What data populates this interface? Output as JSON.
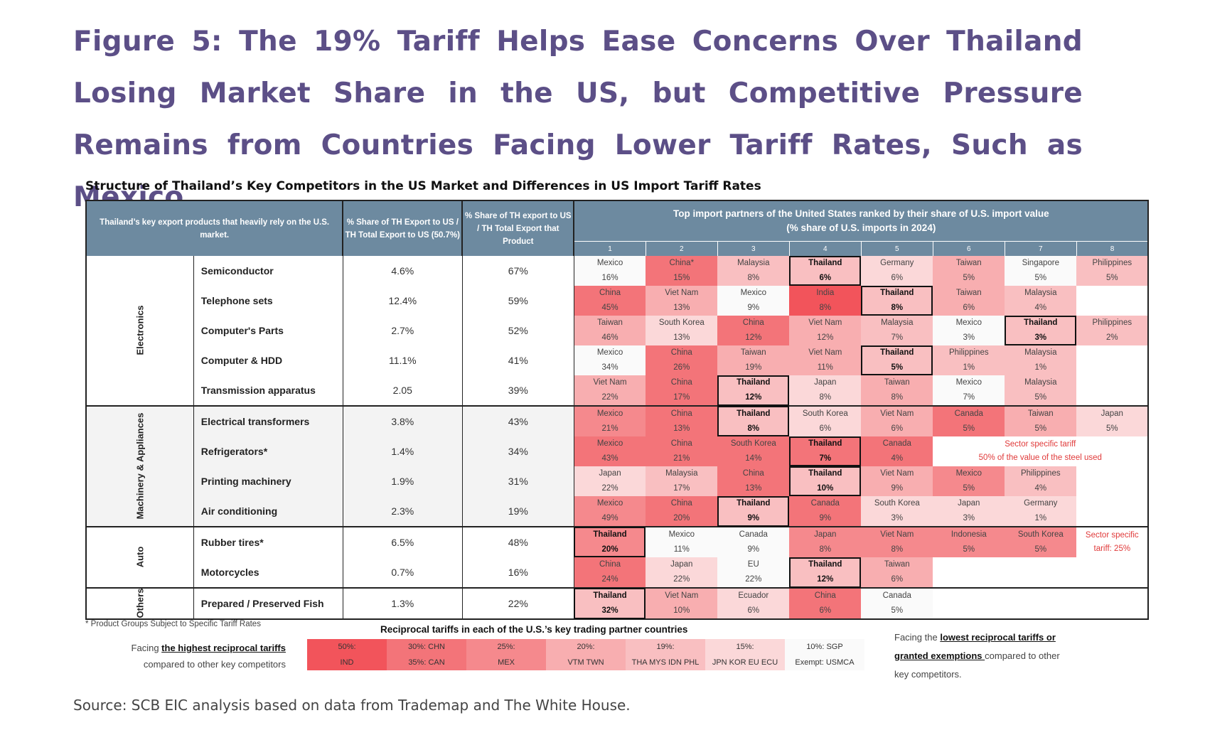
{
  "figure": {
    "title": "Figure 5: The 19% Tariff Helps Ease Concerns Over Thailand Losing Market Share in the US, but Competitive Pressure Remains from Countries Facing Lower Tariff Rates, Such as Mexico.",
    "subtitle": "Structure of Thailand’s Key Competitors in the US Market and Differences in US Import Tariff Rates",
    "source": "Source: SCB EIC analysis based on data from Trademap and The White House.",
    "footnote": "* Product Groups Subject to Specific Tariff Rates"
  },
  "headers": {
    "products": "Thailand’s key export products that heavily rely on the U.S. market.",
    "share_us": "% Share of TH Export to US / TH Total Export to US (50.7%)",
    "share_product": "% Share of TH export to US / TH Total Export that Product",
    "partners": "Top import partners of the United States ranked by their share of U.S. import value",
    "partners_sub": "(% share of U.S. imports in 2024)",
    "ranks": [
      "1",
      "2",
      "3",
      "4",
      "5",
      "6",
      "7",
      "8"
    ]
  },
  "colors": {
    "header_bg": "#6d8aa0",
    "title_purple": "#5c4f87",
    "tariff_50": "#f2545b",
    "tariff_30": "#f37479",
    "tariff_25": "#f5898d",
    "tariff_20": "#f8aeb0",
    "tariff_19": "#f9bfc1",
    "tariff_15": "#fbd8d9",
    "tariff_10": "#fafafa",
    "sector_red": "#e03a3a"
  },
  "chart_data": {
    "type": "table",
    "title": "Structure of Thailand’s Key Competitors in the US Market and Differences in US Import Tariff Rates",
    "categories": [
      {
        "name": "Electronics",
        "rows": [
          0,
          1,
          2,
          3,
          4
        ]
      },
      {
        "name": "Machinery & Appliances",
        "rows": [
          5,
          6,
          7,
          8
        ]
      },
      {
        "name": "Auto",
        "rows": [
          9,
          10
        ]
      },
      {
        "name": "Others",
        "rows": [
          11
        ]
      }
    ],
    "rows": [
      {
        "product": "Semiconductor",
        "share_us": "4.6%",
        "share_product": "67%",
        "partners": [
          [
            "Mexico",
            "16%",
            10
          ],
          [
            "China*",
            "15%",
            30
          ],
          [
            "Malaysia",
            "8%",
            19
          ],
          [
            "Thailand",
            "6%",
            19
          ],
          [
            "Germany",
            "6%",
            15
          ],
          [
            "Taiwan",
            "5%",
            20
          ],
          [
            "Singapore",
            "5%",
            10
          ],
          [
            "Philippines",
            "5%",
            19
          ]
        ]
      },
      {
        "product": "Telephone sets",
        "share_us": "12.4%",
        "share_product": "59%",
        "partners": [
          [
            "China",
            "45%",
            30
          ],
          [
            "Viet Nam",
            "13%",
            20
          ],
          [
            "Mexico",
            "9%",
            10
          ],
          [
            "India",
            "8%",
            50
          ],
          [
            "Thailand",
            "8%",
            19
          ],
          [
            "Taiwan",
            "6%",
            20
          ],
          [
            "Malaysia",
            "4%",
            19
          ]
        ]
      },
      {
        "product": "Computer's Parts",
        "share_us": "2.7%",
        "share_product": "52%",
        "partners": [
          [
            "Taiwan",
            "46%",
            20
          ],
          [
            "South Korea",
            "13%",
            15
          ],
          [
            "China",
            "12%",
            30
          ],
          [
            "Viet Nam",
            "12%",
            20
          ],
          [
            "Malaysia",
            "7%",
            19
          ],
          [
            "Mexico",
            "3%",
            10
          ],
          [
            "Thailand",
            "3%",
            19
          ],
          [
            "Philippines",
            "2%",
            19
          ]
        ]
      },
      {
        "product": "Computer & HDD",
        "share_us": "11.1%",
        "share_product": "41%",
        "partners": [
          [
            "Mexico",
            "34%",
            10
          ],
          [
            "China",
            "26%",
            30
          ],
          [
            "Taiwan",
            "19%",
            20
          ],
          [
            "Viet Nam",
            "11%",
            20
          ],
          [
            "Thailand",
            "5%",
            19
          ],
          [
            "Philippines",
            "1%",
            19
          ],
          [
            "Malaysia",
            "1%",
            19
          ]
        ]
      },
      {
        "product": "Transmission apparatus",
        "share_us": "2.05",
        "share_product": "39%",
        "partners": [
          [
            "Viet Nam",
            "22%",
            20
          ],
          [
            "China",
            "17%",
            30
          ],
          [
            "Thailand",
            "12%",
            19
          ],
          [
            "Japan",
            "8%",
            15
          ],
          [
            "Taiwan",
            "8%",
            20
          ],
          [
            "Mexico",
            "7%",
            10
          ],
          [
            "Malaysia",
            "5%",
            19
          ]
        ]
      },
      {
        "product": "Electrical transformers",
        "share_us": "3.8%",
        "share_product": "43%",
        "partners": [
          [
            "Mexico",
            "21%",
            25
          ],
          [
            "China",
            "13%",
            30
          ],
          [
            "Thailand",
            "8%",
            19
          ],
          [
            "South Korea",
            "6%",
            15
          ],
          [
            "Viet Nam",
            "6%",
            20
          ],
          [
            "Canada",
            "5%",
            30
          ],
          [
            "Taiwan",
            "5%",
            20
          ],
          [
            "Japan",
            "5%",
            15
          ]
        ]
      },
      {
        "product": "Refrigerators*",
        "share_us": "1.4%",
        "share_product": "34%",
        "partners": [
          [
            "Mexico",
            "43%",
            30
          ],
          [
            "China",
            "21%",
            30
          ],
          [
            "South Korea",
            "14%",
            30
          ],
          [
            "Thailand",
            "7%",
            30
          ],
          [
            "Canada",
            "4%",
            30
          ]
        ],
        "sector_note": [
          "Sector specific tariff",
          "50% of the value of the steel used"
        ]
      },
      {
        "product": "Printing machinery",
        "share_us": "1.9%",
        "share_product": "31%",
        "partners": [
          [
            "Japan",
            "22%",
            15
          ],
          [
            "Malaysia",
            "17%",
            19
          ],
          [
            "China",
            "13%",
            30
          ],
          [
            "Thailand",
            "10%",
            19
          ],
          [
            "Viet Nam",
            "9%",
            20
          ],
          [
            "Mexico",
            "5%",
            25
          ],
          [
            "Philippines",
            "4%",
            19
          ]
        ]
      },
      {
        "product": "Air conditioning",
        "share_us": "2.3%",
        "share_product": "19%",
        "partners": [
          [
            "Mexico",
            "49%",
            25
          ],
          [
            "China",
            "20%",
            30
          ],
          [
            "Thailand",
            "9%",
            19
          ],
          [
            "Canada",
            "9%",
            30
          ],
          [
            "South Korea",
            "3%",
            15
          ],
          [
            "Japan",
            "3%",
            15
          ],
          [
            "Germany",
            "1%",
            15
          ]
        ]
      },
      {
        "product": "Rubber tires*",
        "share_us": "6.5%",
        "share_product": "48%",
        "partners": [
          [
            "Thailand",
            "20%",
            25
          ],
          [
            "Mexico",
            "11%",
            10
          ],
          [
            "Canada",
            "9%",
            10
          ],
          [
            "Japan",
            "8%",
            25
          ],
          [
            "Viet Nam",
            "8%",
            25
          ],
          [
            "Indonesia",
            "5%",
            25
          ],
          [
            "South Korea",
            "5%",
            25
          ]
        ],
        "sector_note": [
          "Sector specific",
          "tariff: 25%"
        ]
      },
      {
        "product": "Motorcycles",
        "share_us": "0.7%",
        "share_product": "16%",
        "partners": [
          [
            "China",
            "24%",
            30
          ],
          [
            "Japan",
            "22%",
            15
          ],
          [
            "EU",
            "22%",
            10
          ],
          [
            "Thailand",
            "12%",
            19
          ],
          [
            "Taiwan",
            "6%",
            20
          ]
        ]
      },
      {
        "product": "Prepared / Preserved Fish",
        "share_us": "1.3%",
        "share_product": "22%",
        "partners": [
          [
            "Thailand",
            "32%",
            19
          ],
          [
            "Viet Nam",
            "10%",
            20
          ],
          [
            "Ecuador",
            "6%",
            15
          ],
          [
            "China",
            "6%",
            30
          ],
          [
            "Canada",
            "5%",
            10
          ]
        ]
      }
    ],
    "tariff_legend": {
      "title": "Reciprocal tariffs in each of the U.S.’s key trading partner countries",
      "items": [
        {
          "line1": "50%:",
          "line2": "IND",
          "level": 50
        },
        {
          "line1": "30%: CHN",
          "line2": "35%: CAN",
          "level": 30
        },
        {
          "line1": "25%:",
          "line2": "MEX",
          "level": 25
        },
        {
          "line1": "20%:",
          "line2": "VTM TWN",
          "level": 20
        },
        {
          "line1": "19%:",
          "line2": "THA MYS IDN PHL",
          "level": 19
        },
        {
          "line1": "15%:",
          "line2": "JPN KOR EU ECU",
          "level": 15
        },
        {
          "line1": "10%: SGP",
          "line2": "Exempt: USMCA",
          "level": 10
        }
      ]
    }
  },
  "notes": {
    "left_prefix": "Facing ",
    "left_emph": "the highest reciprocal tariffs",
    "left_suffix": "compared to other key competitors",
    "right_prefix": "Facing the ",
    "right_emph1": "lowest reciprocal tariffs or",
    "right_emph2": "granted exemptions ",
    "right_suffix1": "compared to other",
    "right_suffix2": "key competitors."
  }
}
